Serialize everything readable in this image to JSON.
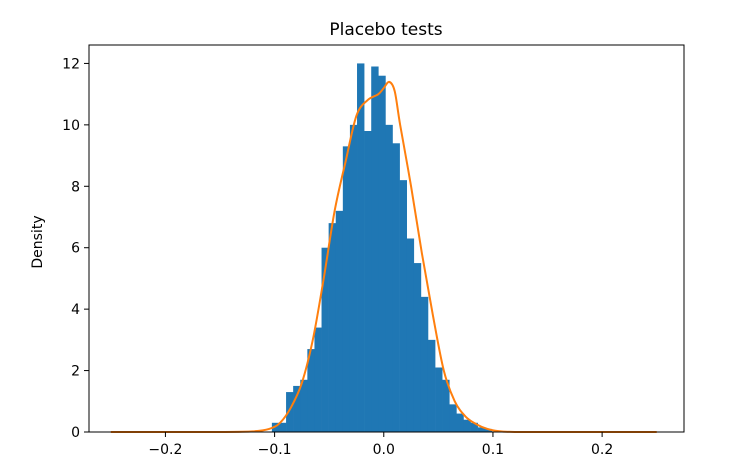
{
  "chart_data": {
    "type": "bar",
    "title": "Placebo tests",
    "xlabel": "",
    "ylabel": "Density",
    "xlim": [
      -0.27,
      0.275
    ],
    "ylim": [
      0,
      12.6
    ],
    "xticks": [
      -0.2,
      -0.1,
      0.0,
      0.1,
      0.2
    ],
    "xtick_labels": [
      "−0.2",
      "−0.1",
      "0.0",
      "0.1",
      "0.2"
    ],
    "yticks": [
      0,
      2,
      4,
      6,
      8,
      10,
      12
    ],
    "ytick_labels": [
      "0",
      "2",
      "4",
      "6",
      "8",
      "10",
      "12"
    ],
    "grid": false,
    "colors": {
      "histogram": "#1f77b4",
      "density": "#ff7f0e"
    },
    "series": [
      {
        "type": "histogram",
        "bins": [
          {
            "x0": -0.1025,
            "x1": -0.096,
            "value": 0.3
          },
          {
            "x0": -0.096,
            "x1": -0.0895,
            "value": 0.3
          },
          {
            "x0": -0.0895,
            "x1": -0.083,
            "value": 1.3
          },
          {
            "x0": -0.083,
            "x1": -0.0765,
            "value": 1.5
          },
          {
            "x0": -0.0765,
            "x1": -0.07,
            "value": 1.7
          },
          {
            "x0": -0.07,
            "x1": -0.0635,
            "value": 2.7
          },
          {
            "x0": -0.0635,
            "x1": -0.057,
            "value": 3.4
          },
          {
            "x0": -0.057,
            "x1": -0.0505,
            "value": 6.0
          },
          {
            "x0": -0.0505,
            "x1": -0.044,
            "value": 6.8
          },
          {
            "x0": -0.044,
            "x1": -0.0375,
            "value": 7.2
          },
          {
            "x0": -0.0375,
            "x1": -0.031,
            "value": 9.3
          },
          {
            "x0": -0.031,
            "x1": -0.0245,
            "value": 10.0
          },
          {
            "x0": -0.0245,
            "x1": -0.018,
            "value": 12.0
          },
          {
            "x0": -0.018,
            "x1": -0.0115,
            "value": 9.8
          },
          {
            "x0": -0.0115,
            "x1": -0.005,
            "value": 11.9
          },
          {
            "x0": -0.005,
            "x1": 0.0015,
            "value": 11.6
          },
          {
            "x0": 0.0015,
            "x1": 0.008,
            "value": 10.0
          },
          {
            "x0": 0.008,
            "x1": 0.0145,
            "value": 9.4
          },
          {
            "x0": 0.0145,
            "x1": 0.021,
            "value": 8.2
          },
          {
            "x0": 0.021,
            "x1": 0.0275,
            "value": 6.3
          },
          {
            "x0": 0.0275,
            "x1": 0.034,
            "value": 5.5
          },
          {
            "x0": 0.034,
            "x1": 0.0405,
            "value": 4.4
          },
          {
            "x0": 0.0405,
            "x1": 0.047,
            "value": 3.0
          },
          {
            "x0": 0.047,
            "x1": 0.0535,
            "value": 2.1
          },
          {
            "x0": 0.0535,
            "x1": 0.06,
            "value": 1.7
          },
          {
            "x0": 0.06,
            "x1": 0.0665,
            "value": 0.9
          },
          {
            "x0": 0.0665,
            "x1": 0.073,
            "value": 0.6
          },
          {
            "x0": 0.073,
            "x1": 0.0795,
            "value": 0.4
          },
          {
            "x0": 0.0795,
            "x1": 0.086,
            "value": 0.3
          },
          {
            "x0": 0.086,
            "x1": 0.0925,
            "value": 0.15
          },
          {
            "x0": 0.0925,
            "x1": 0.099,
            "value": 0.1
          }
        ]
      },
      {
        "type": "line",
        "x": [
          -0.25,
          -0.2,
          -0.15,
          -0.12,
          -0.105,
          -0.095,
          -0.085,
          -0.075,
          -0.065,
          -0.055,
          -0.045,
          -0.035,
          -0.025,
          -0.015,
          -0.005,
          0.0,
          0.005,
          0.01,
          0.015,
          0.025,
          0.035,
          0.045,
          0.055,
          0.065,
          0.075,
          0.085,
          0.095,
          0.105,
          0.12,
          0.15,
          0.2,
          0.25
        ],
        "y": [
          0,
          0,
          0,
          0.02,
          0.1,
          0.3,
          0.8,
          1.6,
          3.0,
          5.0,
          7.2,
          8.8,
          10.3,
          10.8,
          11.0,
          11.2,
          11.4,
          11.1,
          10.0,
          8.0,
          5.8,
          3.8,
          2.0,
          1.0,
          0.5,
          0.25,
          0.1,
          0.03,
          0,
          0,
          0,
          0
        ]
      }
    ]
  }
}
